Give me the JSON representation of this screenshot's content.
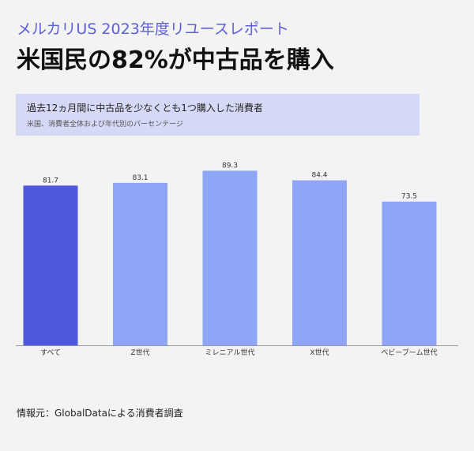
{
  "header": {
    "supertitle": "メルカリUS 2023年度リユースレポート",
    "headline": "米国民の82%が中古品を購入"
  },
  "chart_data": {
    "type": "bar",
    "title": "過去12ヵ月間に中古品を少なくとも1つ購入した消費者",
    "subtitle": "米国、消費者全体および年代別のパーセンテージ",
    "categories": [
      "すべて",
      "Z世代",
      "ミレニアル世代",
      "X世代",
      "ベビーブーム世代"
    ],
    "values": [
      81.7,
      83.1,
      89.3,
      84.4,
      73.5
    ],
    "ylim": [
      0,
      100
    ],
    "grid": false,
    "legend": "none",
    "colors": {
      "highlight": "#4f57dd",
      "default": "#8fa6f6",
      "baseline": "#999999"
    }
  },
  "footer": {
    "source": "情報元：GlobalDataによる消費者調査"
  }
}
